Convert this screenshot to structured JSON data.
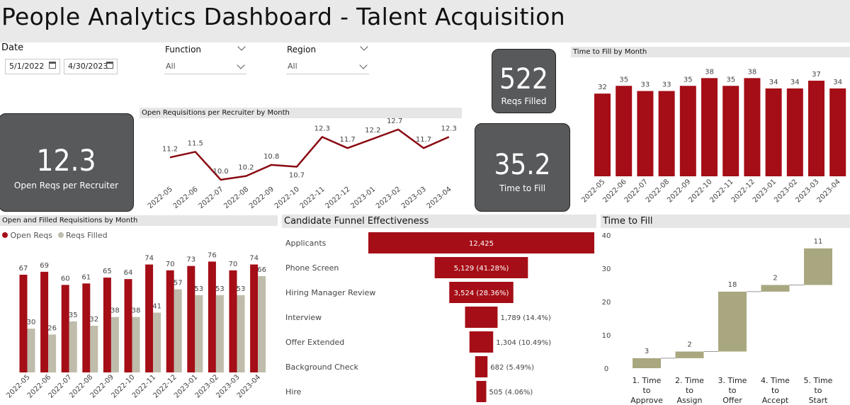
{
  "header": {
    "title": "People Analytics Dashboard - Talent Acquisition"
  },
  "filters": {
    "date_label": "Date",
    "date_start": "5/1/2022",
    "date_end": "4/30/2023",
    "function_label": "Function",
    "function_value": "All",
    "region_label": "Region",
    "region_value": "All"
  },
  "cards": {
    "open_reqs": {
      "value": "12.3",
      "label": "Open Reqs per Recruiter"
    },
    "reqs_filled": {
      "value": "522",
      "label": "Reqs Filled"
    },
    "time_to_fill": {
      "value": "35.2",
      "label": "Time to Fill"
    }
  },
  "colors": {
    "primary": "#a50e17",
    "secondary": "#bfbcab",
    "waterfall": "#a9a77f",
    "card": "#58595b",
    "header": "#e9e9e9"
  },
  "chart_data": [
    {
      "id": "open_req_line",
      "type": "line",
      "title": "Open Requisitions per Recruiter by Month",
      "categories": [
        "2022-05",
        "2022-06",
        "2022-07",
        "2022-08",
        "2022-09",
        "2022-10",
        "2022-11",
        "2022-12",
        "2023-01",
        "2023-02",
        "2023-03",
        "2023-04"
      ],
      "values": [
        11.2,
        11.5,
        10.0,
        10.2,
        10.8,
        10.7,
        12.3,
        11.7,
        12.2,
        12.7,
        11.7,
        12.3
      ],
      "labels": [
        "11.2",
        "11.5",
        "10.0",
        "10.2",
        "10.8",
        "10.7",
        "12.3",
        "11.7",
        "12.2",
        "12.7",
        "11.7",
        "12.3"
      ],
      "color": "#8a0a12"
    },
    {
      "id": "time_to_fill_month",
      "type": "bar",
      "title": "Time to Fill by Month",
      "categories": [
        "2022-05",
        "2022-06",
        "2022-07",
        "2022-08",
        "2022-09",
        "2022-10",
        "2022-11",
        "2022-12",
        "2023-01",
        "2023-02",
        "2023-03",
        "2023-04"
      ],
      "values": [
        32,
        35,
        33,
        33,
        35,
        38,
        35,
        38,
        34,
        34,
        37,
        34
      ]
    },
    {
      "id": "open_filled",
      "type": "bar",
      "title": "Open and Filled Requisitions by Month",
      "categories": [
        "2022-05",
        "2022-06",
        "2022-07",
        "2022-08",
        "2022-09",
        "2022-10",
        "2022-11",
        "2022-12",
        "2023-01",
        "2023-02",
        "2023-03",
        "2023-04"
      ],
      "series": [
        {
          "name": "Open Reqs",
          "values": [
            67,
            69,
            60,
            61,
            65,
            64,
            74,
            70,
            73,
            76,
            70,
            74
          ]
        },
        {
          "name": "Reqs Filled",
          "values": [
            30,
            26,
            35,
            32,
            38,
            38,
            41,
            57,
            53,
            53,
            53,
            66
          ]
        }
      ],
      "legend": "top-left"
    },
    {
      "id": "funnel",
      "type": "funnel",
      "title": "Candidate Funnel Effectiveness",
      "categories": [
        "Applicants",
        "Phone Screen",
        "Hiring Manager Review",
        "Interview",
        "Offer Extended",
        "Background Check",
        "Hire"
      ],
      "values": [
        12425,
        5129,
        3524,
        1789,
        1304,
        682,
        505
      ],
      "labels": [
        "12,425",
        "5,129 (41.28%)",
        "3,524 (28.36%)",
        "1,789 (14.4%)",
        "1,304 (10.49%)",
        "682 (5.49%)",
        "505 (4.06%)"
      ]
    },
    {
      "id": "waterfall",
      "type": "waterfall",
      "title": "Time to Fill",
      "categories": [
        "1. Time to Approve",
        "2. Time to Assign",
        "3. Time to Offer",
        "4. Time to Accept",
        "5. Time to Start"
      ],
      "values": [
        3,
        2,
        18,
        2,
        11
      ],
      "yticks": [
        "0",
        "10",
        "20",
        "30",
        "40"
      ],
      "ylim": [
        0,
        40
      ]
    }
  ]
}
